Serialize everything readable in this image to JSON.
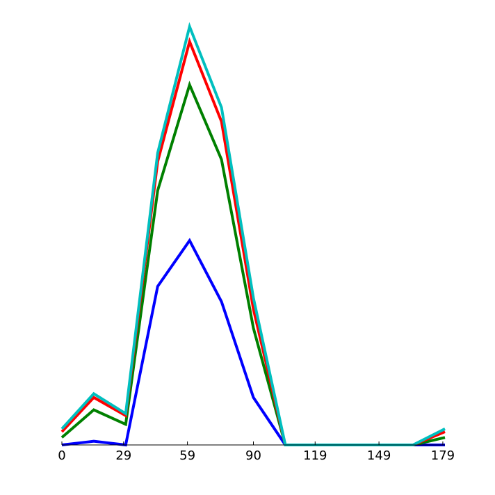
{
  "chart_data": {
    "type": "line",
    "title": "",
    "xlabel": "",
    "ylabel": "",
    "x": [
      0,
      15,
      30,
      45,
      60,
      75,
      90,
      105,
      120,
      135,
      150,
      165,
      180
    ],
    "xticks": [
      0,
      29,
      59,
      90,
      119,
      149,
      179
    ],
    "xtick_labels": [
      "0",
      "29",
      "59",
      "90",
      "119",
      "149",
      "179"
    ],
    "xlim": [
      0,
      180
    ],
    "ylim": [
      0,
      100
    ],
    "grid": false,
    "legend": "none",
    "series": [
      {
        "color": "#0000ff",
        "values": [
          0,
          0.9,
          0,
          38.4,
          49.5,
          34.7,
          11.5,
          0,
          0,
          0,
          0,
          0,
          0
        ]
      },
      {
        "color": "#008000",
        "values": [
          1.8,
          8.5,
          5.0,
          61.6,
          87.2,
          69.1,
          28.3,
          0,
          0,
          0,
          0,
          0,
          1.8
        ]
      },
      {
        "color": "#ff0000",
        "values": [
          3.2,
          11.5,
          7.1,
          68.6,
          97.7,
          78.3,
          32.9,
          0,
          0,
          0,
          0,
          0,
          3.2
        ]
      },
      {
        "color": "#00bfbf",
        "values": [
          3.9,
          12.4,
          7.6,
          70.7,
          101.3,
          81.7,
          35.6,
          0,
          0,
          0,
          0,
          0,
          3.9
        ]
      }
    ]
  }
}
